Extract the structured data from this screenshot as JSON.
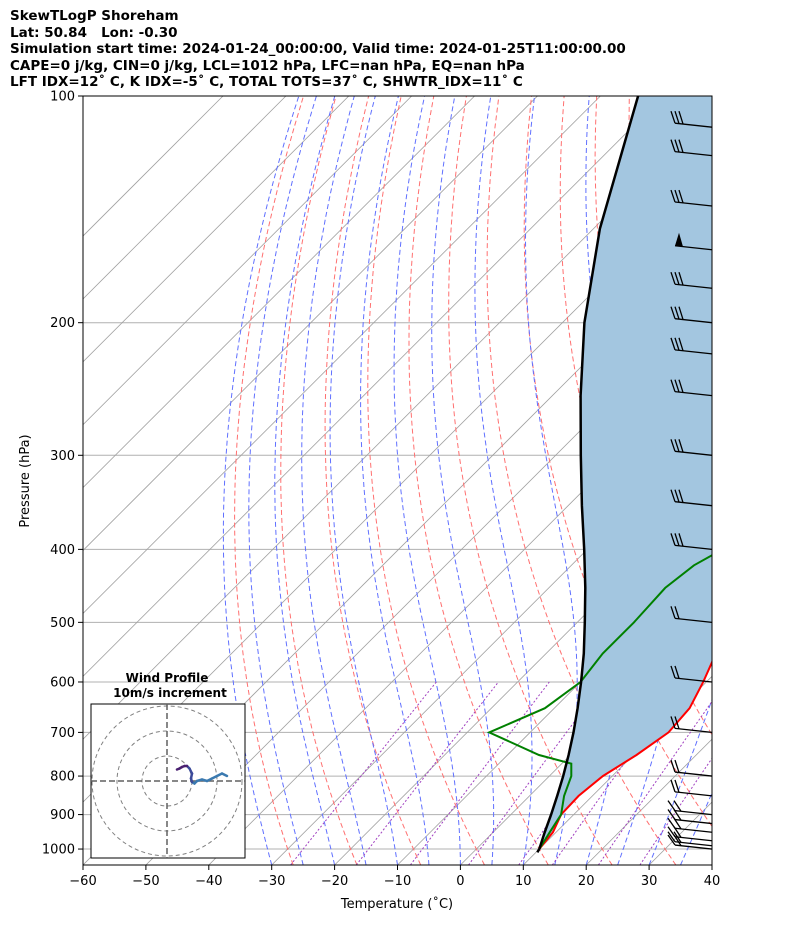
{
  "header": {
    "line1": "SkewTLogP Shoreham",
    "line2": "Lat: 50.84   Lon: -0.30",
    "line3": "Simulation start time: 2024-01-24_00:00:00, Valid time: 2024-01-25T11:00:00.00",
    "line4": "CAPE=0 j/kg, CIN=0 j/kg, LCL=1012 hPa, LFC=nan hPa, EQ=nan hPa",
    "line5": "LFT IDX=12˚ C, K IDX=-5˚ C, TOTAL TOTS=37˚ C, SHWTR_IDX=11˚ C"
  },
  "chart_data": {
    "type": "line",
    "subtype": "skew-t log-p",
    "xlabel": "Temperature (˚C)",
    "ylabel": "Pressure (hPa)",
    "xlim": [
      -60,
      40
    ],
    "ylim": [
      1050,
      100
    ],
    "y_scale": "log",
    "x_ticks": [
      "−60",
      "−50",
      "−40",
      "−30",
      "−20",
      "−10",
      "0",
      "10",
      "20",
      "30",
      "40"
    ],
    "y_ticks": [
      "100",
      "200",
      "300",
      "400",
      "500",
      "600",
      "700",
      "800",
      "900",
      "1000"
    ],
    "grid": true,
    "colors": {
      "temperature": "#ff0000",
      "dewpoint": "#008000",
      "parcel": "#000000",
      "shading": "#a3c6e0",
      "isotherms": "#a0a0a0",
      "dry_adiabats": "#ff7070",
      "moist_adiabats": "#6070ff",
      "mixing_ratio": "#a040c0"
    },
    "series": [
      {
        "role": "temperature",
        "points": [
          [
            1000,
            10.0
          ],
          [
            950,
            9.5
          ],
          [
            900,
            8.0
          ],
          [
            850,
            7.8
          ],
          [
            800,
            8.5
          ],
          [
            750,
            10.5
          ],
          [
            700,
            12.0
          ],
          [
            650,
            11.5
          ],
          [
            600,
            9.5
          ],
          [
            550,
            7.0
          ],
          [
            500,
            3.5
          ],
          [
            450,
            0.5
          ],
          [
            400,
            -1.5
          ],
          [
            350,
            -4.0
          ],
          [
            300,
            -7.5
          ],
          [
            250,
            -11.0
          ],
          [
            220,
            -13.5
          ],
          [
            200,
            -15.0
          ],
          [
            190,
            -16.0
          ],
          [
            180,
            -16.0
          ],
          [
            170,
            -14.0
          ],
          [
            160,
            -10.0
          ],
          [
            150,
            -6.0
          ],
          [
            140,
            -3.0
          ],
          [
            130,
            -2.0
          ],
          [
            120,
            0.0
          ],
          [
            110,
            0.5
          ],
          [
            100,
            1.0
          ]
        ]
      },
      {
        "role": "dewpoint",
        "points": [
          [
            1000,
            10.0
          ],
          [
            950,
            9.0
          ],
          [
            900,
            8.0
          ],
          [
            850,
            5.5
          ],
          [
            800,
            3.5
          ],
          [
            770,
            1.5
          ],
          [
            750,
            -5.0
          ],
          [
            700,
            -16.5
          ],
          [
            650,
            -11.5
          ],
          [
            600,
            -10.0
          ],
          [
            550,
            -11.0
          ],
          [
            500,
            -11.0
          ],
          [
            450,
            -11.5
          ],
          [
            420,
            -10.5
          ],
          [
            400,
            -8.5
          ],
          [
            380,
            -5.5
          ],
          [
            350,
            -5.5
          ],
          [
            320,
            -6.5
          ],
          [
            300,
            -8.5
          ],
          [
            250,
            -12.5
          ],
          [
            220,
            -15.0
          ],
          [
            200,
            -16.5
          ],
          [
            180,
            -17.5
          ],
          [
            170,
            -16.5
          ],
          [
            160,
            -14.0
          ],
          [
            150,
            -13.0
          ],
          [
            140,
            -15.0
          ],
          [
            130,
            -15.5
          ],
          [
            120,
            -14.0
          ],
          [
            110,
            -12.5
          ],
          [
            100,
            -10.5
          ]
        ]
      },
      {
        "role": "parcel",
        "points": [
          [
            1010,
            10.2
          ],
          [
            1000,
            10.0
          ],
          [
            950,
            8.2
          ],
          [
            900,
            6.4
          ],
          [
            850,
            4.4
          ],
          [
            800,
            2.2
          ],
          [
            750,
            -0.3
          ],
          [
            700,
            -3.1
          ],
          [
            650,
            -6.3
          ],
          [
            600,
            -9.9
          ],
          [
            550,
            -14.0
          ],
          [
            500,
            -18.8
          ],
          [
            450,
            -24.2
          ],
          [
            400,
            -30.5
          ],
          [
            350,
            -37.8
          ],
          [
            300,
            -46.0
          ],
          [
            250,
            -55.5
          ],
          [
            200,
            -66.5
          ],
          [
            150,
            -79.0
          ],
          [
            100,
            -94.0
          ]
        ]
      }
    ],
    "wind_barbs": {
      "pressures": [
        1000,
        990,
        975,
        950,
        925,
        900,
        850,
        800,
        700,
        600,
        500,
        400,
        350,
        300,
        250,
        220,
        200,
        180,
        160,
        140,
        120,
        110
      ]
    },
    "hodograph": {
      "title": "Wind Profile",
      "subtitle": "10m/s increment",
      "points": [
        [
          12,
          1
        ],
        [
          11,
          1.5
        ],
        [
          10,
          1
        ],
        [
          9,
          0.5
        ],
        [
          8,
          0
        ],
        [
          7,
          0.3
        ],
        [
          6,
          0
        ],
        [
          5.5,
          -0.5
        ],
        [
          5,
          -0.2
        ],
        [
          4.8,
          0.5
        ],
        [
          5,
          1.5
        ],
        [
          4.5,
          2.5
        ],
        [
          4,
          3
        ],
        [
          3.5,
          3
        ],
        [
          3,
          2.8
        ],
        [
          2.5,
          2.5
        ],
        [
          2,
          2.3
        ]
      ]
    }
  }
}
